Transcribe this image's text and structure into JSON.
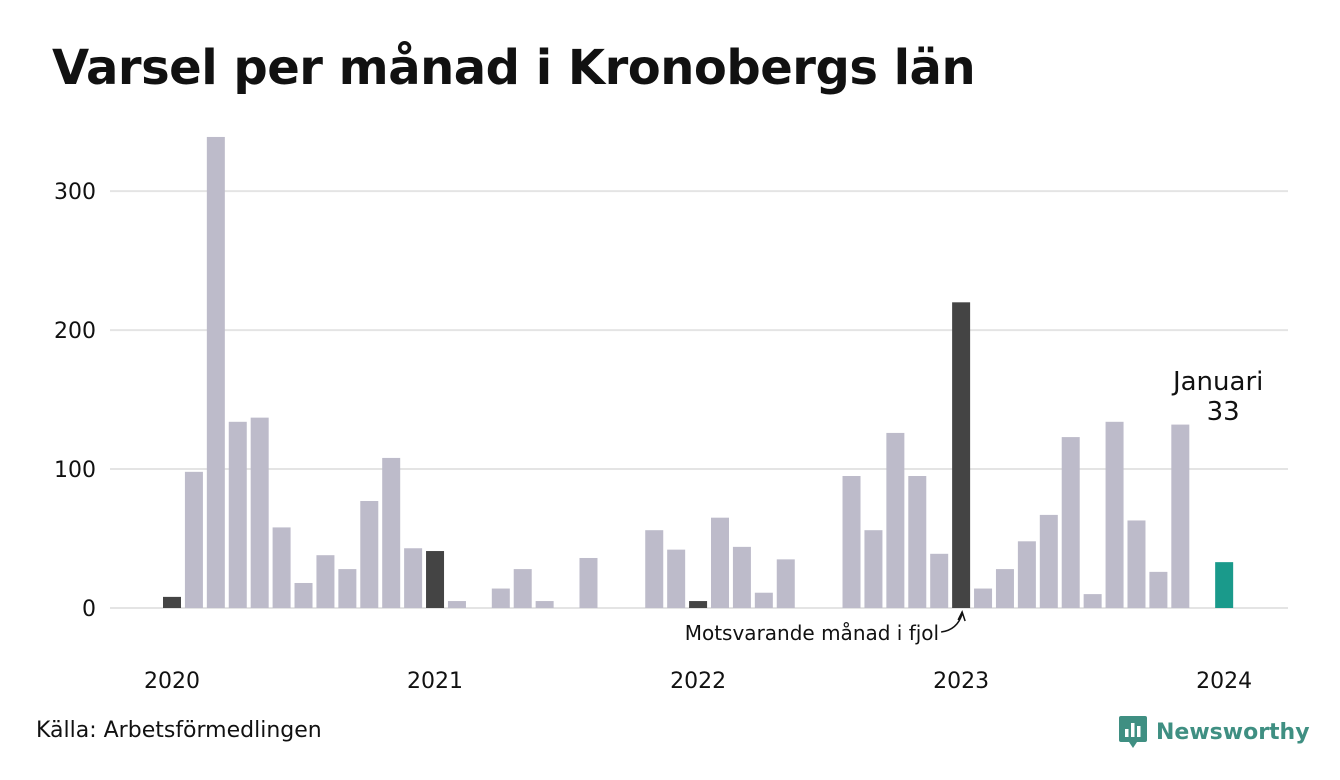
{
  "title": "Varsel per månad i Kronobergs län",
  "source": "Källa: Arbetsförmedlingen",
  "brand": {
    "name": "Newsworthy",
    "icon": "newsworthy-logo-icon",
    "color": "#3f8f82"
  },
  "chart_data": {
    "type": "bar",
    "title": "Varsel per månad i Kronobergs län",
    "xlabel": "",
    "ylabel": "",
    "ylim": [
      0,
      340
    ],
    "yticks": [
      0,
      100,
      200,
      300
    ],
    "xticks": [
      "2020",
      "2021",
      "2022",
      "2023",
      "2024"
    ],
    "grid": true,
    "months": [
      "2020-01",
      "2020-02",
      "2020-03",
      "2020-04",
      "2020-05",
      "2020-06",
      "2020-07",
      "2020-08",
      "2020-09",
      "2020-10",
      "2020-11",
      "2020-12",
      "2021-01",
      "2021-02",
      "2021-03",
      "2021-04",
      "2021-05",
      "2021-06",
      "2021-07",
      "2021-08",
      "2021-09",
      "2021-10",
      "2021-11",
      "2021-12",
      "2022-01",
      "2022-02",
      "2022-03",
      "2022-04",
      "2022-05",
      "2022-06",
      "2022-07",
      "2022-08",
      "2022-09",
      "2022-10",
      "2022-11",
      "2022-12",
      "2023-01",
      "2023-02",
      "2023-03",
      "2023-04",
      "2023-05",
      "2023-06",
      "2023-07",
      "2023-08",
      "2023-09",
      "2023-10",
      "2023-11",
      "2023-12",
      "2024-01"
    ],
    "values": [
      8,
      98,
      339,
      134,
      137,
      58,
      18,
      38,
      28,
      77,
      108,
      43,
      41,
      5,
      0,
      14,
      28,
      5,
      0,
      36,
      0,
      0,
      56,
      42,
      5,
      65,
      44,
      11,
      35,
      0,
      0,
      95,
      56,
      126,
      95,
      39,
      220,
      14,
      28,
      48,
      67,
      123,
      10,
      134,
      63,
      26,
      132,
      0,
      33
    ],
    "highlight_months": [
      "2020-01",
      "2021-01",
      "2022-01",
      "2023-01"
    ],
    "current_month": "2024-01",
    "colors": {
      "default": "#bdbbca",
      "highlight": "#444444",
      "current": "#1a9a8b",
      "grid": "#e4e4e4"
    },
    "annotations": {
      "current_label": "Januari",
      "current_value": "33",
      "previous_year_label": "Motsvarande månad i fjol"
    }
  }
}
